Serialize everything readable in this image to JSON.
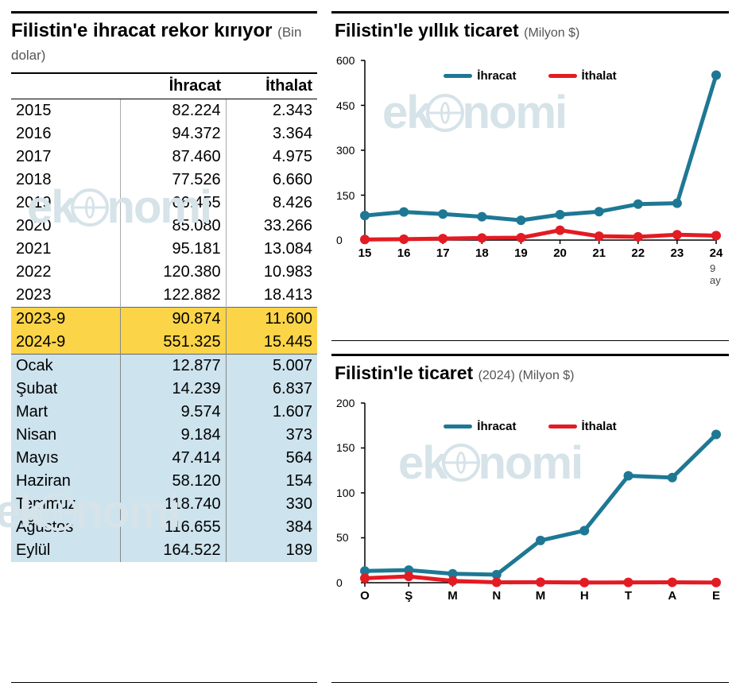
{
  "left": {
    "title": "Filistin'e ihracat rekor kırıyor",
    "unit": "(Bin dolar)",
    "columns": [
      "",
      "İhracat",
      "İthalat"
    ],
    "rows_plain": [
      [
        "2015",
        "82.224",
        "2.343"
      ],
      [
        "2016",
        "94.372",
        "3.364"
      ],
      [
        "2017",
        "87.460",
        "4.975"
      ],
      [
        "2018",
        "77.526",
        "6.660"
      ],
      [
        "2019",
        "66.455",
        "8.426"
      ],
      [
        "2020",
        "85.080",
        "33.266"
      ],
      [
        "2021",
        "95.181",
        "13.084"
      ],
      [
        "2022",
        "120.380",
        "10.983"
      ],
      [
        "2023",
        "122.882",
        "18.413"
      ]
    ],
    "rows_yellow": [
      [
        "2023-9",
        "90.874",
        "11.600"
      ],
      [
        "2024-9",
        "551.325",
        "15.445"
      ]
    ],
    "rows_blue": [
      [
        "Ocak",
        "12.877",
        "5.007"
      ],
      [
        "Şubat",
        "14.239",
        "6.837"
      ],
      [
        "Mart",
        "9.574",
        "1.607"
      ],
      [
        "Nisan",
        "9.184",
        "373"
      ],
      [
        "Mayıs",
        "47.414",
        "564"
      ],
      [
        "Haziran",
        "58.120",
        "154"
      ],
      [
        "Temmuz",
        "118.740",
        "330"
      ],
      [
        "Ağustos",
        "116.655",
        "384"
      ],
      [
        "Eylül",
        "164.522",
        "189"
      ]
    ],
    "watermark": "ekonomi"
  },
  "chart1": {
    "title": "Filistin'le yıllık ticaret",
    "unit": "(Milyon $)",
    "type": "line",
    "legend": [
      "İhracat",
      "İthalat"
    ],
    "x_labels": [
      "15",
      "16",
      "17",
      "18",
      "19",
      "20",
      "21",
      "22",
      "23",
      "24"
    ],
    "note": "9 ay",
    "y_min": 0,
    "y_max": 600,
    "y_step": 150,
    "series1": {
      "color": "#1e7894",
      "width": 5,
      "marker_r": 6,
      "values": [
        82,
        94,
        87,
        78,
        66,
        85,
        95,
        120,
        123,
        551
      ]
    },
    "series2": {
      "color": "#e31b23",
      "width": 5,
      "marker_r": 6,
      "values": [
        2,
        3,
        5,
        7,
        8,
        33,
        13,
        11,
        18,
        15
      ]
    },
    "background_color": "#ffffff",
    "axis_color": "#000000",
    "label_fontsize": 14,
    "watermark": "ekonomi"
  },
  "chart2": {
    "title": "Filistin'le ticaret",
    "unit": "(2024) (Milyon $)",
    "type": "line",
    "legend": [
      "İhracat",
      "İthalat"
    ],
    "x_labels": [
      "O",
      "Ş",
      "M",
      "N",
      "M",
      "H",
      "T",
      "A",
      "E"
    ],
    "y_min": 0,
    "y_max": 200,
    "y_step": 50,
    "series1": {
      "color": "#1e7894",
      "width": 5,
      "marker_r": 6,
      "values": [
        13,
        14,
        10,
        9,
        47,
        58,
        119,
        117,
        165
      ]
    },
    "series2": {
      "color": "#e31b23",
      "width": 5,
      "marker_r": 6,
      "values": [
        5,
        7,
        2,
        0.4,
        0.6,
        0.2,
        0.3,
        0.4,
        0.2
      ]
    },
    "background_color": "#ffffff",
    "axis_color": "#000000",
    "label_fontsize": 14,
    "watermark": "ekonomi"
  }
}
